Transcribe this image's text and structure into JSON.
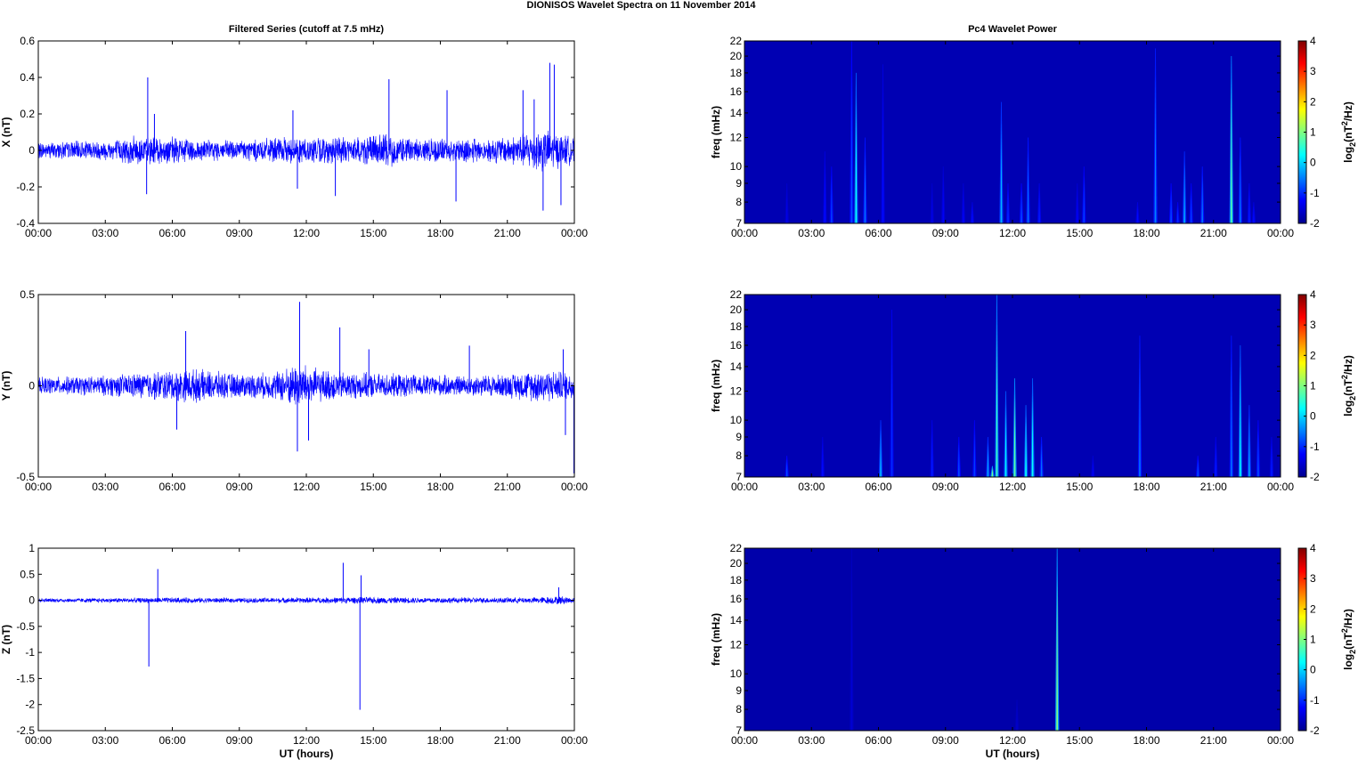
{
  "figure": {
    "title": "DIONISOS Wavelet Spectra on 11 November  2014",
    "left_title": "Filtered Series (cutoff at 7.5 mHz)",
    "right_title": "Pc4 Wavelet Power"
  },
  "colors": {
    "trace": "#0000ff",
    "axis": "#000000",
    "background": "#00008f"
  },
  "chart_data": [
    {
      "type": "line",
      "id": "x",
      "ylabel": "X (nT)",
      "xlabel": "",
      "ylim": [
        -0.4,
        0.6
      ],
      "yticks": [
        -0.4,
        -0.2,
        0,
        0.2,
        0.4,
        0.6
      ],
      "yticklabels": [
        "-0.4",
        "-0.2",
        "0",
        "0.2",
        "0.4",
        "0.6"
      ],
      "xticks": [
        "00:00",
        "03:00",
        "06:00",
        "09:00",
        "12:00",
        "15:00",
        "18:00",
        "21:00",
        "00:00"
      ],
      "xlim_hours": [
        0,
        24
      ],
      "noise_envelope": [
        [
          0,
          0.05
        ],
        [
          3,
          0.06
        ],
        [
          4.5,
          0.09
        ],
        [
          6,
          0.08
        ],
        [
          8,
          0.06
        ],
        [
          10,
          0.07
        ],
        [
          11.8,
          0.08
        ],
        [
          14,
          0.08
        ],
        [
          15.5,
          0.1
        ],
        [
          17,
          0.07
        ],
        [
          19,
          0.07
        ],
        [
          21,
          0.08
        ],
        [
          22.5,
          0.13
        ],
        [
          24,
          0.08
        ]
      ],
      "spikes": [
        [
          4.9,
          0.4
        ],
        [
          4.85,
          -0.24
        ],
        [
          5.2,
          0.2
        ],
        [
          11.6,
          -0.21
        ],
        [
          11.4,
          0.22
        ],
        [
          13.3,
          -0.25
        ],
        [
          15.7,
          0.39
        ],
        [
          18.3,
          0.33
        ],
        [
          18.7,
          -0.28
        ],
        [
          21.7,
          0.33
        ],
        [
          22.2,
          0.28
        ],
        [
          22.6,
          -0.33
        ],
        [
          22.9,
          0.48
        ],
        [
          23.1,
          0.47
        ],
        [
          23.4,
          -0.3
        ]
      ]
    },
    {
      "type": "heatmap",
      "id": "x-power",
      "ylabel": "freq (mHz)",
      "xlabel": "",
      "colorbar_label": "log2(nT2/Hz)",
      "ylim": [
        7,
        22
      ],
      "yticks": [
        7,
        8,
        9,
        10,
        12,
        14,
        16,
        18,
        20,
        22
      ],
      "clim": [
        -2,
        4
      ],
      "cticks": [
        -2,
        -1,
        0,
        1,
        2,
        3,
        4
      ],
      "xticks": [
        "00:00",
        "03:00",
        "06:00",
        "09:00",
        "12:00",
        "15:00",
        "18:00",
        "21:00",
        "00:00"
      ],
      "xlim_hours": [
        0,
        24
      ],
      "background_value": -1.7,
      "streaks": [
        [
          1.9,
          9,
          -1.4
        ],
        [
          3.6,
          11,
          -1.2
        ],
        [
          3.9,
          10,
          -0.9
        ],
        [
          4.8,
          22,
          -0.8
        ],
        [
          5.0,
          18,
          0.3
        ],
        [
          5.4,
          12,
          -0.6
        ],
        [
          6.2,
          19,
          -1.2
        ],
        [
          8.4,
          9,
          -1.4
        ],
        [
          8.9,
          10,
          -1.3
        ],
        [
          9.8,
          9,
          -1.3
        ],
        [
          10.2,
          8,
          -1.2
        ],
        [
          11.5,
          15,
          -0.2
        ],
        [
          11.8,
          9,
          -1.0
        ],
        [
          12.4,
          9,
          -0.8
        ],
        [
          12.7,
          12,
          -0.6
        ],
        [
          13.2,
          9,
          -1.1
        ],
        [
          14.9,
          9,
          -1.3
        ],
        [
          15.2,
          10,
          -0.9
        ],
        [
          17.6,
          8,
          -1.2
        ],
        [
          18.4,
          21,
          -0.5
        ],
        [
          19.1,
          9,
          -0.8
        ],
        [
          19.4,
          8,
          -1.0
        ],
        [
          19.7,
          11,
          -0.3
        ],
        [
          20.0,
          9,
          -0.9
        ],
        [
          20.5,
          10,
          -0.6
        ],
        [
          21.8,
          20,
          0.7
        ],
        [
          22.2,
          12,
          -0.6
        ],
        [
          22.6,
          9,
          -1.1
        ],
        [
          22.8,
          8,
          -1.2
        ]
      ]
    },
    {
      "type": "line",
      "id": "y",
      "ylabel": "Y (nT)",
      "xlabel": "",
      "ylim": [
        -0.5,
        0.5
      ],
      "yticks": [
        -0.5,
        0,
        0.5
      ],
      "yticklabels": [
        "-0.5",
        "0",
        "0.5"
      ],
      "xticks": [
        "00:00",
        "03:00",
        "06:00",
        "09:00",
        "12:00",
        "15:00",
        "18:00",
        "21:00",
        "00:00"
      ],
      "xlim_hours": [
        0,
        24
      ],
      "noise_envelope": [
        [
          0,
          0.05
        ],
        [
          3,
          0.06
        ],
        [
          5.5,
          0.09
        ],
        [
          7,
          0.1
        ],
        [
          9,
          0.07
        ],
        [
          10.5,
          0.08
        ],
        [
          11.7,
          0.14
        ],
        [
          12.5,
          0.1
        ],
        [
          14,
          0.08
        ],
        [
          16,
          0.07
        ],
        [
          19,
          0.06
        ],
        [
          21,
          0.07
        ],
        [
          22.5,
          0.1
        ],
        [
          24,
          0.08
        ]
      ],
      "spikes": [
        [
          11.7,
          0.46
        ],
        [
          11.6,
          -0.36
        ],
        [
          12.1,
          -0.3
        ],
        [
          6.6,
          0.3
        ],
        [
          6.2,
          -0.24
        ],
        [
          13.5,
          0.32
        ],
        [
          14.8,
          0.2
        ],
        [
          19.3,
          0.22
        ],
        [
          23.5,
          0.2
        ],
        [
          23.6,
          -0.27
        ],
        [
          23.98,
          -0.48
        ]
      ]
    },
    {
      "type": "heatmap",
      "id": "y-power",
      "ylabel": "freq (mHz)",
      "xlabel": "",
      "colorbar_label": "log2(nT2/Hz)",
      "ylim": [
        7,
        22
      ],
      "yticks": [
        7,
        8,
        9,
        10,
        12,
        14,
        16,
        18,
        20,
        22
      ],
      "clim": [
        -2,
        4
      ],
      "cticks": [
        -2,
        -1,
        0,
        1,
        2,
        3,
        4
      ],
      "xticks": [
        "00:00",
        "03:00",
        "06:00",
        "09:00",
        "12:00",
        "15:00",
        "18:00",
        "21:00",
        "00:00"
      ],
      "xlim_hours": [
        0,
        24
      ],
      "background_value": -1.7,
      "streaks": [
        [
          1.9,
          8,
          -0.8
        ],
        [
          3.5,
          9,
          -1.2
        ],
        [
          6.1,
          10,
          -0.2
        ],
        [
          6.6,
          20,
          -1.0
        ],
        [
          8.4,
          10,
          -1.1
        ],
        [
          9.6,
          9,
          -0.8
        ],
        [
          10.3,
          10,
          -0.9
        ],
        [
          10.9,
          9,
          -0.3
        ],
        [
          11.1,
          7.5,
          0.9
        ],
        [
          11.3,
          22,
          0.6
        ],
        [
          11.7,
          12,
          0.2
        ],
        [
          12.1,
          13,
          0.8
        ],
        [
          12.6,
          11,
          0.3
        ],
        [
          12.9,
          13,
          0.3
        ],
        [
          13.3,
          9,
          -0.6
        ],
        [
          15.6,
          8,
          -1.3
        ],
        [
          17.7,
          17,
          -0.6
        ],
        [
          20.3,
          8,
          -0.8
        ],
        [
          21.1,
          9,
          -1.1
        ],
        [
          21.8,
          17,
          -0.6
        ],
        [
          22.2,
          16,
          0.2
        ],
        [
          22.6,
          11,
          -0.3
        ],
        [
          23.0,
          10,
          -0.8
        ],
        [
          23.6,
          9,
          -1.1
        ]
      ]
    },
    {
      "type": "line",
      "id": "z",
      "ylabel": "Z (nT)",
      "xlabel": "UT (hours)",
      "ylim": [
        -2.5,
        1
      ],
      "yticks": [
        -2.5,
        -2,
        -1.5,
        -1,
        -0.5,
        0,
        0.5,
        1
      ],
      "yticklabels": [
        "-2.5",
        "-2",
        "-1.5",
        "-1",
        "-0.5",
        "0",
        "0.5",
        "1"
      ],
      "xticks": [
        "00:00",
        "03:00",
        "06:00",
        "09:00",
        "12:00",
        "15:00",
        "18:00",
        "21:00",
        "00:00"
      ],
      "xlim_hours": [
        0,
        24
      ],
      "noise_envelope": [
        [
          0,
          0.04
        ],
        [
          4,
          0.05
        ],
        [
          6,
          0.06
        ],
        [
          9,
          0.05
        ],
        [
          12,
          0.06
        ],
        [
          15,
          0.07
        ],
        [
          17,
          0.06
        ],
        [
          20,
          0.06
        ],
        [
          22,
          0.06
        ],
        [
          23.5,
          0.09
        ],
        [
          24,
          0.05
        ]
      ],
      "spikes": [
        [
          4.95,
          -1.27
        ],
        [
          5.35,
          0.6
        ],
        [
          13.65,
          0.72
        ],
        [
          14.4,
          -2.1
        ],
        [
          14.45,
          0.48
        ],
        [
          23.3,
          0.25
        ]
      ]
    },
    {
      "type": "heatmap",
      "id": "z-power",
      "ylabel": "freq (mHz)",
      "xlabel": "UT (hours)",
      "colorbar_label": "log2(nT2/Hz)",
      "ylim": [
        7,
        22
      ],
      "yticks": [
        7,
        8,
        9,
        10,
        12,
        14,
        16,
        18,
        20,
        22
      ],
      "clim": [
        -2,
        4
      ],
      "cticks": [
        -2,
        -1,
        0,
        1,
        2,
        3,
        4
      ],
      "xticks": [
        "00:00",
        "03:00",
        "06:00",
        "09:00",
        "12:00",
        "15:00",
        "18:00",
        "21:00",
        "00:00"
      ],
      "xlim_hours": [
        0,
        24
      ],
      "background_value": -1.75,
      "streaks": [
        [
          4.8,
          22,
          -1.5
        ],
        [
          12.2,
          8.5,
          -1.55
        ],
        [
          14.0,
          22,
          1.0
        ]
      ]
    }
  ]
}
